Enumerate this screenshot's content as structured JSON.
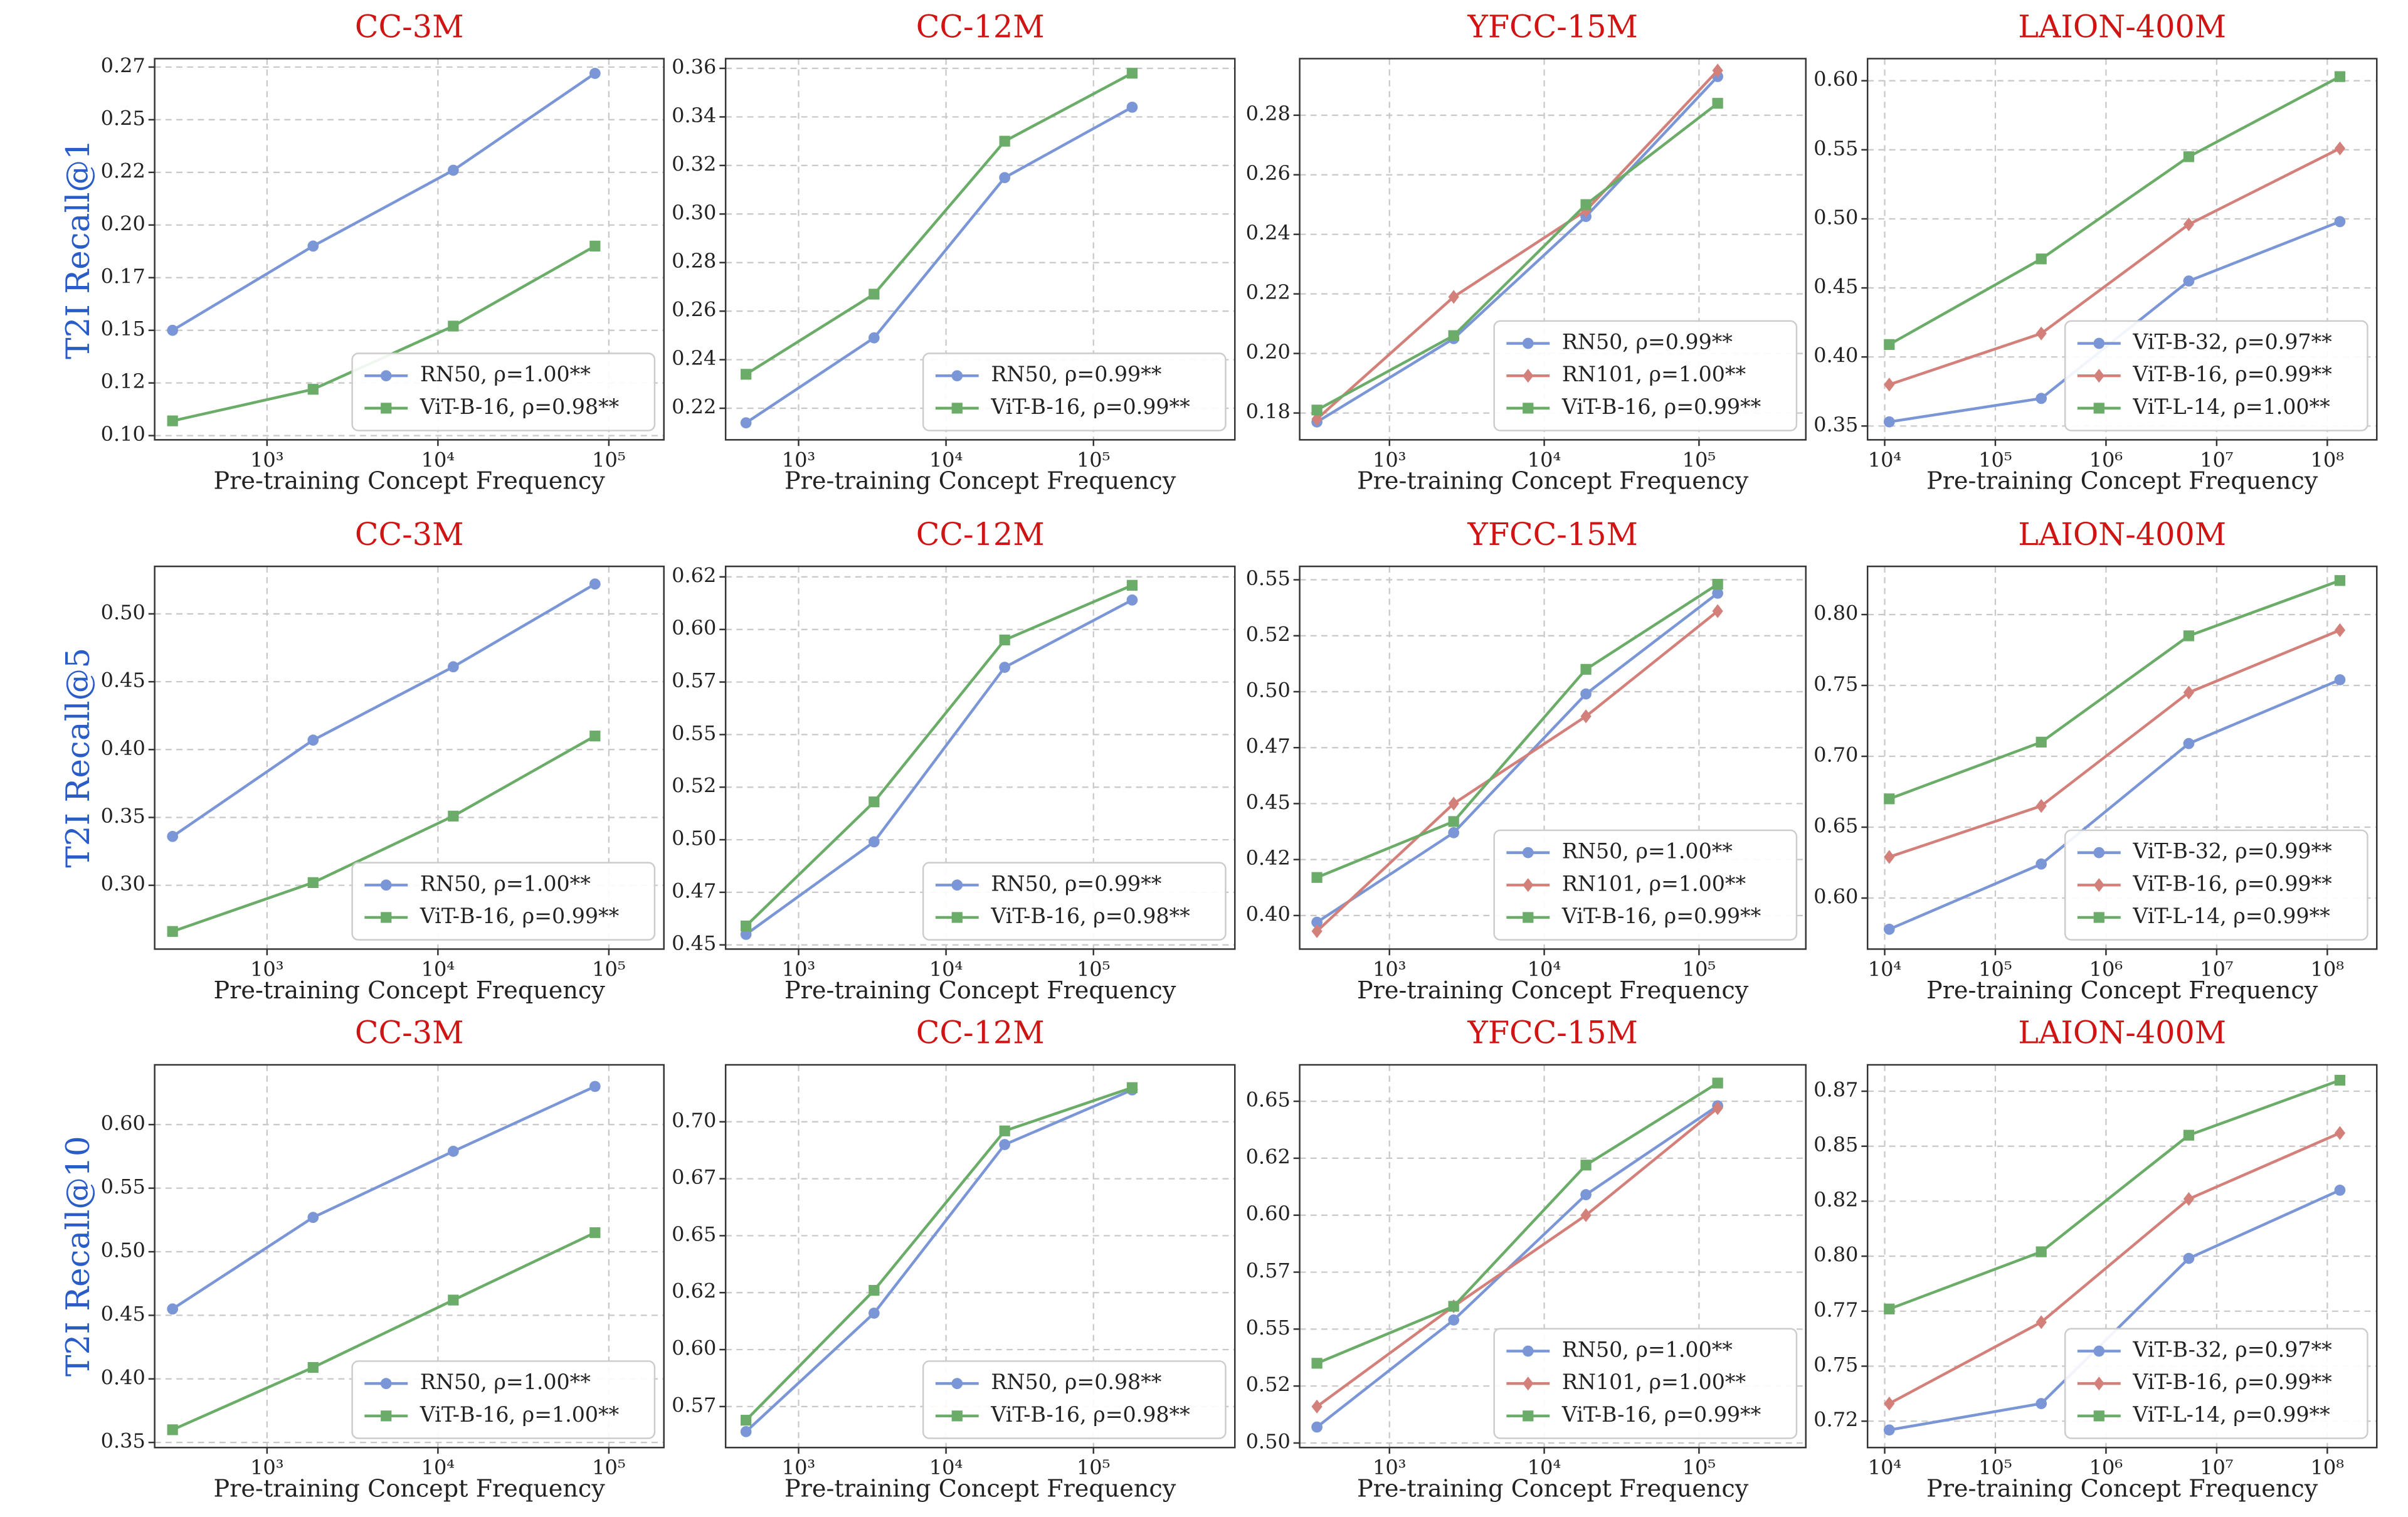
{
  "chart_data": [
    {
      "type": "line",
      "title": "CC-3M",
      "xlabel": "Pre-training Concept Frequency",
      "ylabel": "T2I Recall@1",
      "xscale": "log",
      "grid": true,
      "legend": "lower right",
      "x": [
        280,
        1860,
        12300,
        83000
      ],
      "xlim": [
        220,
        210000
      ],
      "xticks": [
        {
          "value": 1000,
          "label": "10³"
        },
        {
          "value": 10000,
          "label": "10⁴"
        },
        {
          "value": 100000,
          "label": "10⁵"
        }
      ],
      "ylim": [
        0.098,
        0.279
      ],
      "yticks": [
        {
          "value": 0.1,
          "label": "0.10"
        },
        {
          "value": 0.125,
          "label": "0.12"
        },
        {
          "value": 0.15,
          "label": "0.15"
        },
        {
          "value": 0.175,
          "label": "0.17"
        },
        {
          "value": 0.2,
          "label": "0.20"
        },
        {
          "value": 0.225,
          "label": "0.22"
        },
        {
          "value": 0.25,
          "label": "0.25"
        },
        {
          "value": 0.275,
          "label": "0.27"
        }
      ],
      "series": [
        {
          "name": "RN50, ρ=1.00**",
          "color": "#7b96d6",
          "marker": "circle",
          "values": [
            0.15,
            0.19,
            0.226,
            0.272
          ]
        },
        {
          "name": "ViT-B-16, ρ=0.98**",
          "color": "#6aac68",
          "marker": "square",
          "values": [
            0.107,
            0.122,
            0.152,
            0.19
          ]
        }
      ]
    },
    {
      "type": "line",
      "title": "CC-12M",
      "xlabel": "Pre-training Concept Frequency",
      "xscale": "log",
      "grid": true,
      "legend": "lower right",
      "x": [
        440,
        3250,
        25000,
        183000
      ],
      "xlim": [
        320,
        910000
      ],
      "xticks": [
        {
          "value": 1000,
          "label": "10³"
        },
        {
          "value": 10000,
          "label": "10⁴"
        },
        {
          "value": 100000,
          "label": "10⁵"
        }
      ],
      "ylim": [
        0.207,
        0.364
      ],
      "yticks": [
        0.22,
        0.24,
        0.26,
        0.28,
        {
          "value": 0.3,
          "label": "0.30"
        },
        0.32,
        0.34,
        0.36
      ],
      "series": [
        {
          "name": "RN50, ρ=0.99**",
          "color": "#7b96d6",
          "marker": "circle",
          "values": [
            0.214,
            0.249,
            0.315,
            0.344
          ]
        },
        {
          "name": "ViT-B-16, ρ=0.99**",
          "color": "#6aac68",
          "marker": "square",
          "values": [
            0.234,
            0.267,
            0.33,
            0.358
          ]
        }
      ]
    },
    {
      "type": "line",
      "title": "YFCC-15M",
      "xlabel": "Pre-training Concept Frequency",
      "xscale": "log",
      "grid": true,
      "legend": "lower right",
      "x": [
        340,
        2600,
        18600,
        132000
      ],
      "xlim": [
        263,
        490000
      ],
      "xticks": [
        {
          "value": 1000,
          "label": "10³"
        },
        {
          "value": 10000,
          "label": "10⁴"
        },
        {
          "value": 100000,
          "label": "10⁵"
        }
      ],
      "ylim": [
        0.171,
        0.299
      ],
      "yticks": [
        0.18,
        {
          "value": 0.2,
          "label": "0.20"
        },
        0.22,
        0.24,
        0.26,
        0.28
      ],
      "series": [
        {
          "name": "RN50, ρ=0.99**",
          "color": "#7b96d6",
          "marker": "circle",
          "values": [
            0.177,
            0.205,
            0.246,
            0.293
          ]
        },
        {
          "name": "RN101, ρ=1.00**",
          "color": "#d4807a",
          "marker": "diamond",
          "values": [
            0.178,
            0.219,
            0.248,
            0.295
          ]
        },
        {
          "name": "ViT-B-16, ρ=0.99**",
          "color": "#6aac68",
          "marker": "square",
          "values": [
            0.181,
            0.206,
            0.25,
            0.284
          ]
        }
      ]
    },
    {
      "type": "line",
      "title": "LAION-400M",
      "xlabel": "Pre-training Concept Frequency",
      "xscale": "log",
      "grid": true,
      "legend": "lower right",
      "x": [
        11000,
        260000,
        5600000,
        130000000
      ],
      "xlim": [
        7000,
        280000000
      ],
      "xticks": [
        {
          "value": 10000,
          "label": "10⁴"
        },
        {
          "value": 100000,
          "label": "10⁵"
        },
        {
          "value": 1000000,
          "label": "10⁶"
        },
        {
          "value": 10000000,
          "label": "10⁷"
        },
        {
          "value": 100000000,
          "label": "10⁸"
        }
      ],
      "ylim": [
        0.34,
        0.616
      ],
      "yticks": [
        0.35,
        {
          "value": 0.4,
          "label": "0.40"
        },
        0.45,
        {
          "value": 0.5,
          "label": "0.50"
        },
        0.55,
        {
          "value": 0.6,
          "label": "0.60"
        }
      ],
      "series": [
        {
          "name": "ViT-B-32, ρ=0.97**",
          "color": "#7b96d6",
          "marker": "circle",
          "values": [
            0.353,
            0.37,
            0.455,
            0.498
          ]
        },
        {
          "name": "ViT-B-16, ρ=0.99**",
          "color": "#d4807a",
          "marker": "diamond",
          "values": [
            0.38,
            0.417,
            0.496,
            0.551
          ]
        },
        {
          "name": "ViT-L-14, ρ=1.00**",
          "color": "#6aac68",
          "marker": "square",
          "values": [
            0.409,
            0.471,
            0.545,
            0.603
          ]
        }
      ]
    },
    {
      "type": "line",
      "title": "CC-3M",
      "xlabel": "Pre-training Concept Frequency",
      "ylabel": "T2I Recall@5",
      "xscale": "log",
      "grid": true,
      "legend": "lower right",
      "x": [
        280,
        1860,
        12300,
        83000
      ],
      "xlim": [
        220,
        210000
      ],
      "xticks": [
        {
          "value": 1000,
          "label": "10³"
        },
        {
          "value": 10000,
          "label": "10⁴"
        },
        {
          "value": 100000,
          "label": "10⁵"
        }
      ],
      "ylim": [
        0.253,
        0.535
      ],
      "yticks": [
        {
          "value": 0.3,
          "label": "0.30"
        },
        0.35,
        {
          "value": 0.4,
          "label": "0.40"
        },
        0.45,
        {
          "value": 0.5,
          "label": "0.50"
        }
      ],
      "series": [
        {
          "name": "RN50, ρ=1.00**",
          "color": "#7b96d6",
          "marker": "circle",
          "values": [
            0.336,
            0.407,
            0.461,
            0.522
          ]
        },
        {
          "name": "ViT-B-16, ρ=0.99**",
          "color": "#6aac68",
          "marker": "square",
          "values": [
            0.266,
            0.302,
            0.351,
            0.41
          ]
        }
      ]
    },
    {
      "type": "line",
      "title": "CC-12M",
      "xlabel": "Pre-training Concept Frequency",
      "xscale": "log",
      "grid": true,
      "legend": "lower right",
      "x": [
        440,
        3250,
        25000,
        183000
      ],
      "xlim": [
        320,
        910000
      ],
      "xticks": [
        {
          "value": 1000,
          "label": "10³"
        },
        {
          "value": 10000,
          "label": "10⁴"
        },
        {
          "value": 100000,
          "label": "10⁵"
        }
      ],
      "ylim": [
        0.448,
        0.63
      ],
      "yticks": [
        0.45,
        {
          "value": 0.475,
          "label": "0.47"
        },
        {
          "value": 0.5,
          "label": "0.50"
        },
        {
          "value": 0.525,
          "label": "0.52"
        },
        0.55,
        {
          "value": 0.575,
          "label": "0.57"
        },
        {
          "value": 0.6,
          "label": "0.60"
        },
        {
          "value": 0.625,
          "label": "0.62"
        }
      ],
      "series": [
        {
          "name": "RN50, ρ=0.99**",
          "color": "#7b96d6",
          "marker": "circle",
          "values": [
            0.455,
            0.499,
            0.582,
            0.614
          ]
        },
        {
          "name": "ViT-B-16, ρ=0.98**",
          "color": "#6aac68",
          "marker": "square",
          "values": [
            0.459,
            0.518,
            0.595,
            0.621
          ]
        }
      ]
    },
    {
      "type": "line",
      "title": "YFCC-15M",
      "xlabel": "Pre-training Concept Frequency",
      "xscale": "log",
      "grid": true,
      "legend": "lower right",
      "x": [
        340,
        2600,
        18600,
        132000
      ],
      "xlim": [
        263,
        490000
      ],
      "xticks": [
        {
          "value": 1000,
          "label": "10³"
        },
        {
          "value": 10000,
          "label": "10⁴"
        },
        {
          "value": 100000,
          "label": "10⁵"
        }
      ],
      "ylim": [
        0.385,
        0.556
      ],
      "yticks": [
        {
          "value": 0.4,
          "label": "0.40"
        },
        {
          "value": 0.425,
          "label": "0.42"
        },
        0.45,
        {
          "value": 0.475,
          "label": "0.47"
        },
        {
          "value": 0.5,
          "label": "0.50"
        },
        {
          "value": 0.525,
          "label": "0.52"
        },
        0.55
      ],
      "series": [
        {
          "name": "RN50, ρ=1.00**",
          "color": "#7b96d6",
          "marker": "circle",
          "values": [
            0.397,
            0.437,
            0.499,
            0.544
          ]
        },
        {
          "name": "RN101, ρ=1.00**",
          "color": "#d4807a",
          "marker": "diamond",
          "values": [
            0.393,
            0.45,
            0.489,
            0.536
          ]
        },
        {
          "name": "ViT-B-16, ρ=0.99**",
          "color": "#6aac68",
          "marker": "square",
          "values": [
            0.417,
            0.442,
            0.51,
            0.548
          ]
        }
      ]
    },
    {
      "type": "line",
      "title": "LAION-400M",
      "xlabel": "Pre-training Concept Frequency",
      "xscale": "log",
      "grid": true,
      "legend": "lower right",
      "x": [
        11000,
        260000,
        5600000,
        130000000
      ],
      "xlim": [
        7000,
        280000000
      ],
      "xticks": [
        {
          "value": 10000,
          "label": "10⁴"
        },
        {
          "value": 100000,
          "label": "10⁵"
        },
        {
          "value": 1000000,
          "label": "10⁶"
        },
        {
          "value": 10000000,
          "label": "10⁷"
        },
        {
          "value": 100000000,
          "label": "10⁸"
        }
      ],
      "ylim": [
        0.564,
        0.834
      ],
      "yticks": [
        {
          "value": 0.6,
          "label": "0.60"
        },
        0.65,
        {
          "value": 0.7,
          "label": "0.70"
        },
        0.75,
        {
          "value": 0.8,
          "label": "0.80"
        }
      ],
      "series": [
        {
          "name": "ViT-B-32, ρ=0.99**",
          "color": "#7b96d6",
          "marker": "circle",
          "values": [
            0.578,
            0.624,
            0.709,
            0.754
          ]
        },
        {
          "name": "ViT-B-16, ρ=0.99**",
          "color": "#d4807a",
          "marker": "diamond",
          "values": [
            0.629,
            0.665,
            0.745,
            0.789
          ]
        },
        {
          "name": "ViT-L-14, ρ=0.99**",
          "color": "#6aac68",
          "marker": "square",
          "values": [
            0.67,
            0.71,
            0.785,
            0.824
          ]
        }
      ]
    },
    {
      "type": "line",
      "title": "CC-3M",
      "xlabel": "Pre-training Concept Frequency",
      "ylabel": "T2I Recall@10",
      "xscale": "log",
      "grid": true,
      "legend": "lower right",
      "x": [
        280,
        1860,
        12300,
        83000
      ],
      "xlim": [
        220,
        210000
      ],
      "xticks": [
        {
          "value": 1000,
          "label": "10³"
        },
        {
          "value": 10000,
          "label": "10⁴"
        },
        {
          "value": 100000,
          "label": "10⁵"
        }
      ],
      "ylim": [
        0.346,
        0.647
      ],
      "yticks": [
        0.35,
        {
          "value": 0.4,
          "label": "0.40"
        },
        0.45,
        {
          "value": 0.5,
          "label": "0.50"
        },
        0.55,
        {
          "value": 0.6,
          "label": "0.60"
        }
      ],
      "series": [
        {
          "name": "RN50, ρ=1.00**",
          "color": "#7b96d6",
          "marker": "circle",
          "values": [
            0.455,
            0.527,
            0.579,
            0.63
          ]
        },
        {
          "name": "ViT-B-16, ρ=1.00**",
          "color": "#6aac68",
          "marker": "square",
          "values": [
            0.36,
            0.409,
            0.462,
            0.515
          ]
        }
      ]
    },
    {
      "type": "line",
      "title": "CC-12M",
      "xlabel": "Pre-training Concept Frequency",
      "xscale": "log",
      "grid": true,
      "legend": "lower right",
      "x": [
        440,
        3250,
        25000,
        183000
      ],
      "xlim": [
        320,
        910000
      ],
      "xticks": [
        {
          "value": 1000,
          "label": "10³"
        },
        {
          "value": 10000,
          "label": "10⁴"
        },
        {
          "value": 100000,
          "label": "10⁵"
        }
      ],
      "ylim": [
        0.557,
        0.725
      ],
      "yticks": [
        {
          "value": 0.575,
          "label": "0.57"
        },
        {
          "value": 0.6,
          "label": "0.60"
        },
        {
          "value": 0.625,
          "label": "0.62"
        },
        0.65,
        {
          "value": 0.675,
          "label": "0.67"
        },
        {
          "value": 0.7,
          "label": "0.70"
        }
      ],
      "series": [
        {
          "name": "RN50, ρ=0.98**",
          "color": "#7b96d6",
          "marker": "circle",
          "values": [
            0.564,
            0.616,
            0.69,
            0.714
          ]
        },
        {
          "name": "ViT-B-16, ρ=0.98**",
          "color": "#6aac68",
          "marker": "square",
          "values": [
            0.569,
            0.626,
            0.696,
            0.715
          ]
        }
      ]
    },
    {
      "type": "line",
      "title": "YFCC-15M",
      "xlabel": "Pre-training Concept Frequency",
      "xscale": "log",
      "grid": true,
      "legend": "lower right",
      "x": [
        340,
        2600,
        18600,
        132000
      ],
      "xlim": [
        263,
        490000
      ],
      "xticks": [
        {
          "value": 1000,
          "label": "10³"
        },
        {
          "value": 10000,
          "label": "10⁴"
        },
        {
          "value": 100000,
          "label": "10⁵"
        }
      ],
      "ylim": [
        0.498,
        0.666
      ],
      "yticks": [
        {
          "value": 0.5,
          "label": "0.50"
        },
        {
          "value": 0.525,
          "label": "0.52"
        },
        0.55,
        {
          "value": 0.575,
          "label": "0.57"
        },
        {
          "value": 0.6,
          "label": "0.60"
        },
        {
          "value": 0.625,
          "label": "0.62"
        },
        0.65
      ],
      "series": [
        {
          "name": "RN50, ρ=1.00**",
          "color": "#7b96d6",
          "marker": "circle",
          "values": [
            0.507,
            0.554,
            0.609,
            0.648
          ]
        },
        {
          "name": "RN101, ρ=1.00**",
          "color": "#d4807a",
          "marker": "diamond",
          "values": [
            0.516,
            0.56,
            0.6,
            0.647
          ]
        },
        {
          "name": "ViT-B-16, ρ=0.99**",
          "color": "#6aac68",
          "marker": "square",
          "values": [
            0.535,
            0.56,
            0.622,
            0.658
          ]
        }
      ]
    },
    {
      "type": "line",
      "title": "LAION-400M",
      "xlabel": "Pre-training Concept Frequency",
      "xscale": "log",
      "grid": true,
      "legend": "lower right",
      "x": [
        11000,
        260000,
        5600000,
        130000000
      ],
      "xlim": [
        7000,
        280000000
      ],
      "xticks": [
        {
          "value": 10000,
          "label": "10⁴"
        },
        {
          "value": 100000,
          "label": "10⁵"
        },
        {
          "value": 1000000,
          "label": "10⁶"
        },
        {
          "value": 10000000,
          "label": "10⁷"
        },
        {
          "value": 100000000,
          "label": "10⁸"
        }
      ],
      "ylim": [
        0.713,
        0.887
      ],
      "yticks": [
        {
          "value": 0.725,
          "label": "0.72"
        },
        0.75,
        {
          "value": 0.775,
          "label": "0.77"
        },
        {
          "value": 0.8,
          "label": "0.80"
        },
        {
          "value": 0.825,
          "label": "0.82"
        },
        0.85,
        {
          "value": 0.875,
          "label": "0.87"
        }
      ],
      "series": [
        {
          "name": "ViT-B-32, ρ=0.97**",
          "color": "#7b96d6",
          "marker": "circle",
          "values": [
            0.721,
            0.733,
            0.799,
            0.83
          ]
        },
        {
          "name": "ViT-B-16, ρ=0.99**",
          "color": "#d4807a",
          "marker": "diamond",
          "values": [
            0.733,
            0.77,
            0.826,
            0.856
          ]
        },
        {
          "name": "ViT-L-14, ρ=0.99**",
          "color": "#6aac68",
          "marker": "square",
          "values": [
            0.776,
            0.802,
            0.855,
            0.88
          ]
        }
      ]
    }
  ]
}
